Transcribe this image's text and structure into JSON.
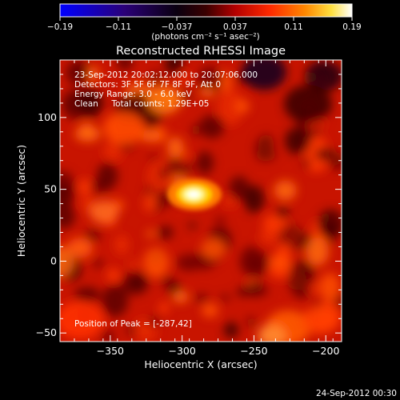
{
  "colorbar": {
    "ticks": [
      "-0.19",
      "-0.11",
      "-0.037",
      "0.037",
      "0.11",
      "0.19"
    ],
    "units": "(photons cm⁻² s⁻¹ asec⁻²)"
  },
  "title": "Reconstructed RHESSI Image",
  "annotations": {
    "time_range": "23-Sep-2012 20:02:12.000 to 20:07:06.000",
    "detectors": "Detectors: 3F 5F 6F 7F 8F 9F, Att 0",
    "energy": "Energy Range: 3.0 - 6.0 keV",
    "clean": "Clean     Total counts: 1.29E+05",
    "peak": "Position of Peak = [-287,42]"
  },
  "footer_timestamp": "24-Sep-2012 00:30",
  "colors": {
    "background": "#000000",
    "text": "#ffffff"
  },
  "chart_data": {
    "type": "heatmap",
    "title": "Reconstructed RHESSI Image",
    "xlabel": "Heliocentric X (arcsec)",
    "ylabel": "Heliocentric Y (arcsec)",
    "xlim": [
      -385,
      -189
    ],
    "ylim": [
      -56,
      140
    ],
    "x_ticks": [
      -350,
      -300,
      -250,
      -200
    ],
    "y_ticks": [
      -50,
      0,
      50,
      100
    ],
    "x_tick_labels": [
      "−350",
      "−300",
      "−250",
      "−200"
    ],
    "y_tick_labels": [
      "−50",
      "0",
      "50",
      "100"
    ],
    "colorbar_range": [
      -0.19,
      0.19
    ],
    "colormap": "hot (blue-black-red-yellow-white)",
    "peak_position": [
      -287,
      42
    ],
    "grid": false
  }
}
